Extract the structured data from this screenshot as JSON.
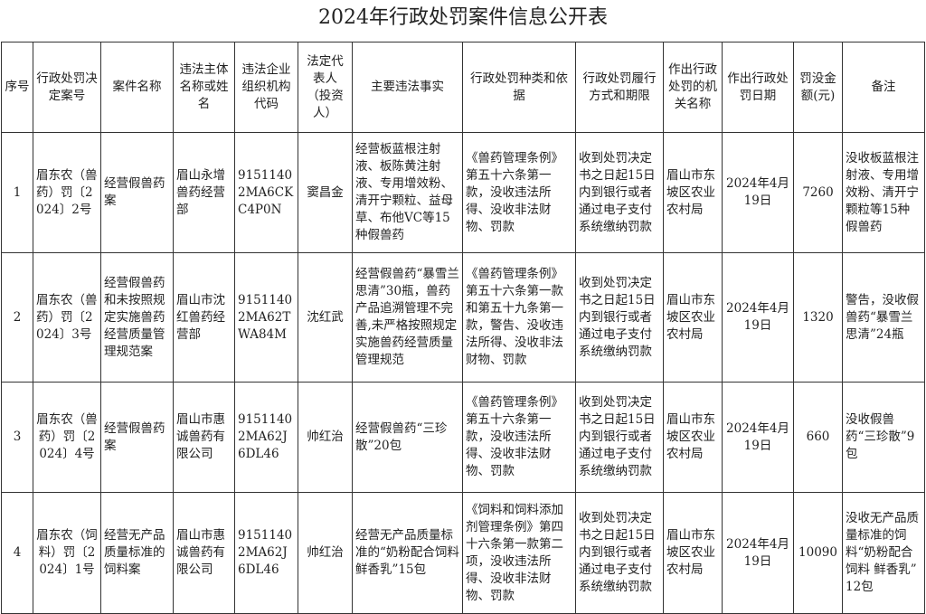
{
  "title": "2024年行政处罚案件信息公开表",
  "headers": [
    "序号",
    "行政处罚决定案号",
    "案件名称",
    "违法主体名称或姓名",
    "违法企业组织机构代码",
    "法定代表人（投资人）",
    "主要违法事实",
    "行政处罚种类和依据",
    "行政处罚履行方式和期限",
    "作出行政处罚的机关名称",
    "作出行政处罚日期",
    "罚没金额(元)",
    "备注"
  ],
  "rows": [
    [
      "1",
      "眉东农（兽药）罚〔2024〕2号",
      "经营假兽药案",
      "眉山永增兽药经营部",
      "91511402MA6CKC4P0N",
      "窦昌金",
      "经营板蓝根注射液、板陈黄注射液、专用增效粉、清开宁颗粒、益母草、布他VC等15种假兽药",
      "《兽药管理条例》第五十六条第一款，没收违法所得、没收非法财物、罚款",
      "收到处罚决定书之日起15日内到银行或者通过电子支付系统缴纳罚款",
      "眉山市东坡区农业农村局",
      "2024年4月19日",
      "7260",
      "没收板蓝根注射液、专用增效粉、清开宁颗粒等15种假兽药"
    ],
    [
      "2",
      "眉东农（兽药）罚〔2024〕3号",
      "经营假兽药和未按照规定实施兽药经营质量管理规范案",
      "眉山市沈红兽药经营部",
      "91511402MA62TWA84M",
      "沈红武",
      "经营假兽药“暴雪兰思清”30瓶，兽药产品追溯管理不完善,未严格按照规定实施兽药经营质量管理规范",
      "《兽药管理条例》第五十六条第一款和第五十九条第一款，警告、没收违法所得、没收非法财物、罚款",
      "收到处罚决定书之日起15日内到银行或者通过电子支付系统缴纳罚款",
      "眉山市东坡区农业农村局",
      "2024年4月19日",
      "1320",
      "警告，没收假兽药“暴雪兰思清”24瓶"
    ],
    [
      "3",
      "眉东农（兽药）罚〔2024〕4号",
      "经营假兽药案",
      "眉山市惠诚兽药有限公司",
      "91511402MA62J6DL46",
      "帅红治",
      "经营假兽药“三珍散”20包",
      "《兽药管理条例》第五十六条第一款，没收违法所得、没收非法财物、罚款",
      "收到处罚决定书之日起15日内到银行或者通过电子支付系统缴纳罚款",
      "眉山市东坡区农业农村局",
      "2024年4月19日",
      "660",
      "没收假兽药“三珍散”9包"
    ],
    [
      "4",
      "眉东农（饲料）罚〔2024〕1号",
      "经营无产品质量标准的饲料案",
      "眉山市惠诚兽药有限公司",
      "91511402MA62J6DL46",
      "帅红治",
      "经营无产品质量标准的“奶粉配合饲料 鲜香乳”15包",
      "《饲料和饲料添加剂管理条例》第四十六条第一款第二项，没收违法所得、没收非法财物、罚款",
      "收到处罚决定书之日起15日内到银行或者通过电子支付系统缴纳罚款",
      "眉山市东坡区农业农村局",
      "2024年4月19日",
      "10090",
      "没收无产品质量标准的饲料“奶粉配合饲料 鲜香乳” 12包"
    ]
  ]
}
